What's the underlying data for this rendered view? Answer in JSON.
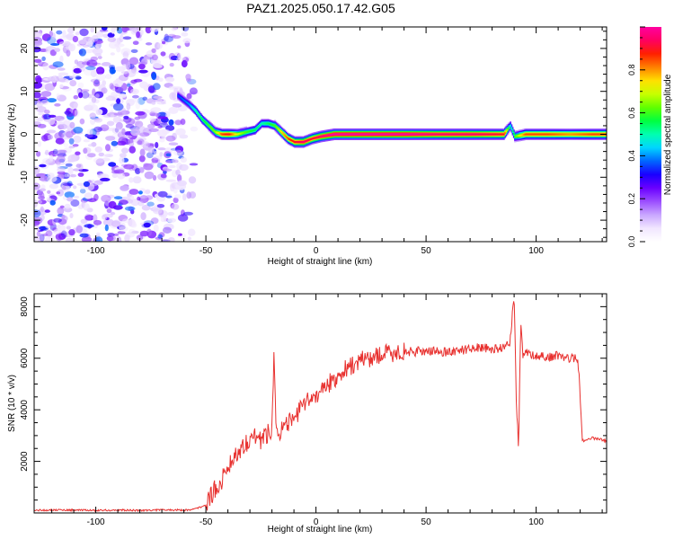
{
  "figure": {
    "title": "PAZ1.2025.050.17.42.G05"
  },
  "colors": {
    "snr_line": "#e8312f",
    "colormap": [
      "#ffffff",
      "#f1e6ff",
      "#c9a6ff",
      "#9b4dff",
      "#6a00ff",
      "#1a00ff",
      "#0066ff",
      "#00d5ff",
      "#00ffb0",
      "#00ff40",
      "#60ff00",
      "#c8ff00",
      "#ffe000",
      "#ff8000",
      "#ff2000",
      "#ff0060",
      "#ff00a0"
    ]
  },
  "chart_data": [
    {
      "type": "heatmap",
      "title": "PAZ1.2025.050.17.42.G05",
      "xlabel": "Height of straight line (km)",
      "ylabel": "Frequency (Hz)",
      "xlim": [
        -128,
        132
      ],
      "ylim": [
        -25,
        25
      ],
      "xticks": [
        -100,
        -50,
        0,
        50,
        100
      ],
      "xtick_labels": [
        "-100",
        "-50",
        "0",
        "50",
        "100"
      ],
      "yticks": [
        -20,
        -10,
        0,
        10,
        20
      ],
      "ytick_labels": [
        "-20",
        "-10",
        "0",
        "10",
        "20"
      ],
      "colorbar": {
        "label": "Normalized spectral amplitude",
        "range": [
          0,
          1
        ],
        "ticks": [
          0.0,
          0.2,
          0.4,
          0.6,
          0.8
        ],
        "tick_labels": [
          "0.0",
          "0.2",
          "0.4",
          "0.6",
          "0.8"
        ]
      },
      "noise_region_x": [
        -128,
        -53
      ],
      "signal_ridge": {
        "x": [
          -63,
          -58,
          -55,
          -52,
          -49,
          -46,
          -43,
          -40,
          -36,
          -32,
          -28,
          -25,
          -22,
          -19,
          -16,
          -13,
          -10,
          -6,
          -2,
          2,
          8,
          20,
          40,
          55,
          70,
          85,
          88,
          90,
          95,
          105,
          115,
          125,
          132
        ],
        "frequency": [
          9,
          7,
          5.5,
          3.5,
          2,
          0.5,
          0,
          0,
          0,
          0.5,
          1,
          2.5,
          2.5,
          2,
          0.5,
          -1,
          -1.8,
          -1.8,
          -1,
          -0.5,
          0,
          0,
          0,
          0,
          0,
          0,
          2,
          -0.5,
          0,
          0,
          0,
          0,
          0
        ],
        "amplitude": [
          0.35,
          0.4,
          0.5,
          0.55,
          0.6,
          0.65,
          0.85,
          0.9,
          0.7,
          0.6,
          0.55,
          0.5,
          0.55,
          0.6,
          0.75,
          0.85,
          0.9,
          0.95,
          0.9,
          0.95,
          1,
          1,
          1,
          0.95,
          0.95,
          0.9,
          0.45,
          0.6,
          0.85,
          0.85,
          0.8,
          0.85,
          0.85
        ]
      }
    },
    {
      "type": "line",
      "xlabel": "Height of straight line (km)",
      "ylabel": "SNR (10 * v/v)",
      "xlim": [
        -128,
        132
      ],
      "ylim": [
        0,
        8500
      ],
      "xticks": [
        -100,
        -50,
        0,
        50,
        100
      ],
      "xtick_labels": [
        "-100",
        "-50",
        "0",
        "50",
        "100"
      ],
      "yticks": [
        2000,
        4000,
        6000,
        8000
      ],
      "ytick_labels": [
        "2000",
        "4000",
        "6000",
        "8000"
      ],
      "series": [
        {
          "x": [
            -128,
            -120,
            -110,
            -100,
            -90,
            -80,
            -70,
            -60,
            -55,
            -50,
            -48,
            -46,
            -44,
            -42,
            -40,
            -38,
            -36,
            -34,
            -32,
            -30,
            -28,
            -26,
            -24,
            -22,
            -20,
            -19,
            -18,
            -16,
            -14,
            -12,
            -10,
            -8,
            -6,
            -4,
            -2,
            0,
            2,
            4,
            6,
            8,
            10,
            12,
            14,
            16,
            18,
            20,
            22,
            24,
            26,
            28,
            30,
            35,
            40,
            45,
            50,
            55,
            60,
            65,
            70,
            72,
            75,
            80,
            85,
            88,
            90,
            91,
            92,
            93,
            94,
            96,
            100,
            105,
            110,
            115,
            119,
            120,
            121,
            125,
            130,
            132
          ],
          "y": [
            100,
            120,
            110,
            100,
            110,
            100,
            120,
            110,
            150,
            300,
            600,
            900,
            1100,
            1400,
            1800,
            2100,
            2300,
            2500,
            2700,
            2900,
            3000,
            2800,
            2900,
            3100,
            3300,
            6300,
            3200,
            3200,
            3300,
            3500,
            3700,
            3900,
            4100,
            4300,
            4400,
            4600,
            4700,
            4900,
            5000,
            5200,
            5300,
            5500,
            5600,
            5700,
            5800,
            5900,
            5950,
            6000,
            6050,
            6100,
            6150,
            6200,
            6250,
            6250,
            6300,
            6250,
            6250,
            6300,
            6350,
            6450,
            6400,
            6350,
            6400,
            6600,
            8400,
            4500,
            2400,
            7400,
            6100,
            6200,
            6100,
            6050,
            6100,
            6000,
            6000,
            4500,
            2800,
            2900,
            2850,
            2800
          ]
        }
      ]
    }
  ]
}
